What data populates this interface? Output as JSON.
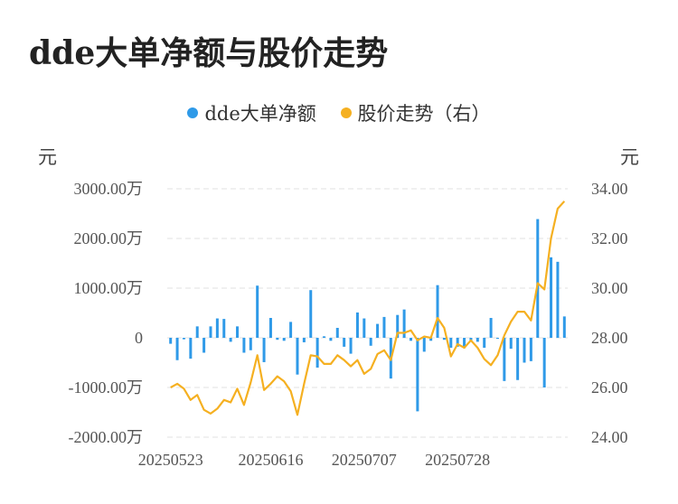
{
  "title": "dde大单净额与股价走势",
  "legend": {
    "series1": "dde大单净额",
    "series2": "股价走势（右）"
  },
  "units": {
    "left": "元",
    "right": "元"
  },
  "colors": {
    "bar": "#2f9ae8",
    "line": "#f5b021",
    "grid": "#e6e6e6"
  },
  "chart_data": {
    "type": "bar+line",
    "x_tick_labels": [
      "20250523",
      "20250616",
      "20250707",
      "20250728"
    ],
    "left_axis": {
      "tick_labels": [
        "3000.00万",
        "2000.00万",
        "1000.00万",
        "0",
        "-1000.00万",
        "-2000.00万"
      ],
      "range": [
        -2000,
        3000
      ],
      "unit_label": "万"
    },
    "right_axis": {
      "tick_labels": [
        "34.00",
        "32.00",
        "30.00",
        "28.00",
        "26.00",
        "24.00"
      ],
      "range": [
        24,
        34
      ]
    },
    "series": [
      {
        "name": "dde大单净额",
        "type": "bar",
        "values": [
          -120,
          -450,
          -30,
          -420,
          230,
          -300,
          230,
          390,
          380,
          -80,
          230,
          -300,
          -250,
          1050,
          -490,
          400,
          -40,
          -60,
          320,
          -740,
          -90,
          960,
          -600,
          30,
          -60,
          200,
          -180,
          -320,
          510,
          390,
          -160,
          280,
          420,
          -820,
          460,
          570,
          -60,
          -1480,
          -280,
          -60,
          1060,
          -40,
          -200,
          -180,
          -210,
          -50,
          -80,
          -200,
          400,
          -20,
          -870,
          -220,
          -850,
          -500,
          -470,
          2390,
          -1000,
          1620,
          1530,
          430
        ]
      },
      {
        "name": "股价走势（右）",
        "type": "line",
        "values": [
          26.0,
          26.15,
          25.95,
          25.5,
          25.7,
          25.1,
          24.95,
          25.15,
          25.5,
          25.4,
          25.95,
          25.3,
          26.2,
          27.3,
          25.9,
          26.15,
          26.45,
          26.25,
          25.85,
          24.9,
          26.15,
          27.3,
          27.25,
          26.95,
          26.95,
          27.3,
          27.1,
          26.85,
          27.1,
          26.55,
          26.75,
          27.35,
          27.5,
          27.1,
          28.2,
          28.2,
          28.3,
          27.9,
          28.05,
          28.0,
          28.8,
          28.4,
          27.25,
          27.75,
          27.6,
          27.9,
          27.6,
          27.15,
          26.9,
          27.3,
          28.1,
          28.65,
          29.05,
          29.05,
          28.7,
          30.2,
          29.95,
          32.0,
          33.2,
          33.5
        ]
      }
    ]
  }
}
